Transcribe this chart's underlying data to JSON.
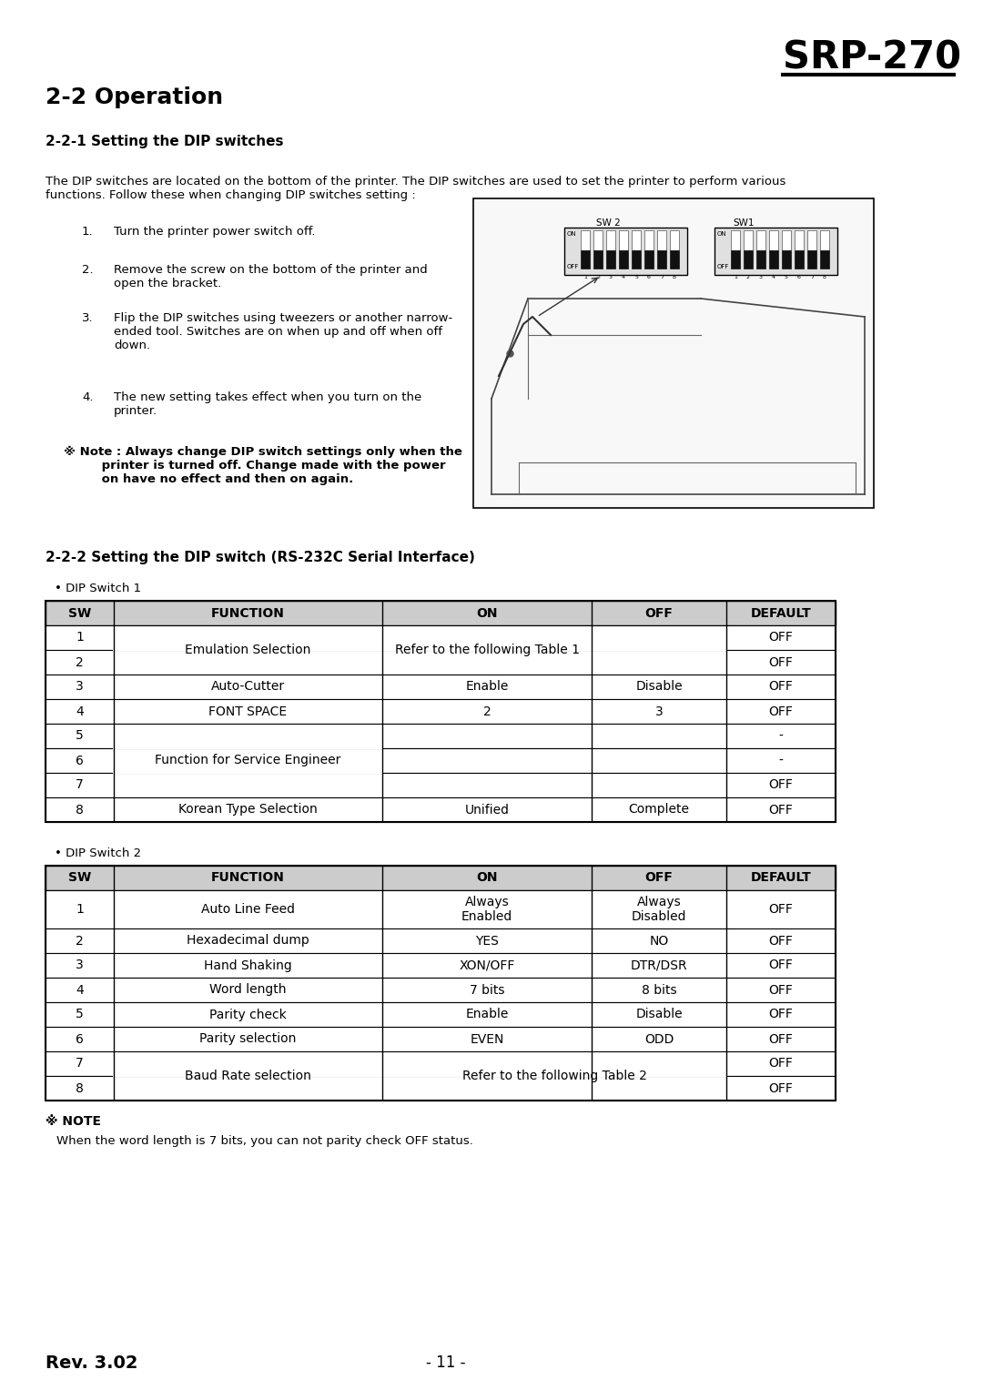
{
  "page_title": "SRP-270",
  "section_title": "2-2 Operation",
  "subsection1_title": "2-2-1 Setting the DIP switches",
  "intro_text": "The DIP switches are located on the bottom of the printer. The DIP switches are used to set the printer to perform various\nfunctions. Follow these when changing DIP switches setting :",
  "steps": [
    "Turn the printer power switch off.",
    "Remove the screw on the bottom of the printer and\nopen the bracket.",
    "Flip the DIP switches using tweezers or another narrow-\nended tool. Switches are on when up and off when off\ndown.",
    "The new setting takes effect when you turn on the\nprinter."
  ],
  "note_bold": "※ Note : Always change DIP switch settings only when the\n         printer is turned off. Change made with the power\n         on have no effect and then on again.",
  "subsection2_title": "2-2-2 Setting the DIP switch (RS-232C Serial Interface)",
  "dip1_label": "• DIP Switch 1",
  "dip1_header": [
    "SW",
    "FUNCTION",
    "ON",
    "OFF",
    "DEFAULT"
  ],
  "dip2_label": "• DIP Switch 2",
  "dip2_header": [
    "SW",
    "FUNCTION",
    "ON",
    "OFF",
    "DEFAULT"
  ],
  "note2_bold": "※ NOTE",
  "note2_text": "When the word length is 7 bits, you can not parity check OFF status.",
  "footer_left": "Rev. 3.02",
  "footer_center": "- 11 -",
  "bg_color": "#ffffff",
  "header_bg": "#cccccc",
  "table_border": "#000000",
  "text_color": "#000000"
}
